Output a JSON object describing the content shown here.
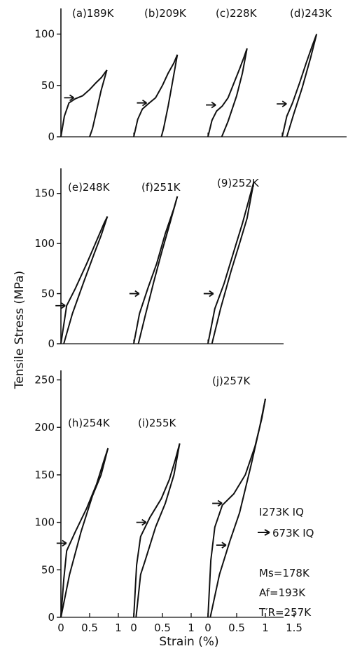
{
  "chart_data": {
    "type": "line",
    "ylabel": "Tensile Stress (MPa)",
    "xlabel": "Strain (%)",
    "rows": [
      {
        "ylim": [
          0,
          125
        ],
        "yticks": [
          "0",
          "50",
          "100"
        ],
        "yticks_values": [
          0,
          50,
          100
        ],
        "panels": [
          {
            "label": "(a)189K",
            "loading": [
              [
                0,
                0
              ],
              [
                0.06,
                20
              ],
              [
                0.14,
                33
              ],
              [
                0.25,
                37
              ],
              [
                0.38,
                40
              ],
              [
                0.5,
                46
              ],
              [
                0.6,
                52
              ],
              [
                0.71,
                58
              ],
              [
                0.8,
                65
              ]
            ],
            "unloading": [
              [
                0.8,
                65
              ],
              [
                0.7,
                45
              ],
              [
                0.62,
                25
              ],
              [
                0.55,
                8
              ],
              [
                0.5,
                0
              ]
            ],
            "arrow": [
              0.25,
              38
            ]
          },
          {
            "label": "(b)209K",
            "loading": [
              [
                0,
                0
              ],
              [
                0.07,
                17
              ],
              [
                0.15,
                27
              ],
              [
                0.25,
                32
              ],
              [
                0.38,
                38
              ],
              [
                0.5,
                50
              ],
              [
                0.6,
                62
              ],
              [
                0.7,
                72
              ],
              [
                0.76,
                80
              ]
            ],
            "unloading": [
              [
                0.76,
                80
              ],
              [
                0.68,
                55
              ],
              [
                0.6,
                30
              ],
              [
                0.52,
                8
              ],
              [
                0.48,
                0
              ]
            ],
            "arrow": [
              0.25,
              33
            ]
          },
          {
            "label": "(c)228K",
            "loading": [
              [
                0,
                0
              ],
              [
                0.07,
                16
              ],
              [
                0.15,
                25
              ],
              [
                0.25,
                30
              ],
              [
                0.35,
                38
              ],
              [
                0.45,
                52
              ],
              [
                0.55,
                66
              ],
              [
                0.63,
                78
              ],
              [
                0.68,
                86
              ]
            ],
            "unloading": [
              [
                0.68,
                86
              ],
              [
                0.6,
                62
              ],
              [
                0.5,
                40
              ],
              [
                0.35,
                15
              ],
              [
                0.24,
                0
              ]
            ],
            "arrow": [
              0.16,
              31
            ]
          },
          {
            "label": "(d)243K",
            "loading": [
              [
                0,
                0
              ],
              [
                0.08,
                20
              ],
              [
                0.18,
                33
              ],
              [
                0.3,
                52
              ],
              [
                0.42,
                72
              ],
              [
                0.52,
                88
              ],
              [
                0.6,
                100
              ]
            ],
            "unloading": [
              [
                0.6,
                100
              ],
              [
                0.5,
                78
              ],
              [
                0.35,
                48
              ],
              [
                0.2,
                22
              ],
              [
                0.08,
                0
              ]
            ],
            "arrow": [
              0.1,
              32
            ]
          }
        ]
      },
      {
        "ylim": [
          0,
          175
        ],
        "yticks": [
          "0",
          "50",
          "100",
          "150"
        ],
        "yticks_values": [
          0,
          50,
          100,
          150
        ],
        "panels": [
          {
            "label": "(e)248K",
            "loading": [
              [
                0,
                0
              ],
              [
                0.1,
                38
              ],
              [
                0.25,
                55
              ],
              [
                0.45,
                80
              ],
              [
                0.6,
                100
              ],
              [
                0.75,
                120
              ],
              [
                0.81,
                127
              ]
            ],
            "unloading": [
              [
                0.81,
                127
              ],
              [
                0.7,
                108
              ],
              [
                0.58,
                90
              ],
              [
                0.4,
                62
              ],
              [
                0.2,
                30
              ],
              [
                0.05,
                0
              ]
            ],
            "arrow": [
              0.1,
              38
            ]
          },
          {
            "label": "(f)251K",
            "loading": [
              [
                0,
                0
              ],
              [
                0.1,
                30
              ],
              [
                0.25,
                56
              ],
              [
                0.4,
                80
              ],
              [
                0.55,
                110
              ],
              [
                0.7,
                135
              ],
              [
                0.76,
                147
              ]
            ],
            "unloading": [
              [
                0.76,
                147
              ],
              [
                0.62,
                118
              ],
              [
                0.48,
                90
              ],
              [
                0.35,
                62
              ],
              [
                0.2,
                28
              ],
              [
                0.08,
                0
              ]
            ],
            "arrow": [
              0.12,
              50
            ]
          },
          {
            "label": "(9)252K",
            "loading": [
              [
                0,
                0
              ],
              [
                0.12,
                35
              ],
              [
                0.28,
                60
              ],
              [
                0.45,
                92
              ],
              [
                0.6,
                120
              ],
              [
                0.72,
                145
              ],
              [
                0.8,
                162
              ]
            ],
            "unloading": [
              [
                0.8,
                162
              ],
              [
                0.68,
                125
              ],
              [
                0.55,
                100
              ],
              [
                0.4,
                72
              ],
              [
                0.22,
                35
              ],
              [
                0.07,
                0
              ]
            ],
            "arrow": [
              0.12,
              50
            ]
          }
        ]
      },
      {
        "ylim": [
          0,
          260
        ],
        "yticks": [
          "0",
          "50",
          "100",
          "150",
          "200",
          "250"
        ],
        "yticks_values": [
          0,
          50,
          100,
          150,
          200,
          250
        ],
        "panels": [
          {
            "label": "(h)254K",
            "loading": [
              [
                0,
                0
              ],
              [
                0.05,
                40
              ],
              [
                0.1,
                70
              ],
              [
                0.25,
                90
              ],
              [
                0.45,
                115
              ],
              [
                0.62,
                140
              ],
              [
                0.75,
                165
              ],
              [
                0.82,
                178
              ]
            ],
            "unloading": [
              [
                0.82,
                178
              ],
              [
                0.7,
                150
              ],
              [
                0.55,
                128
              ],
              [
                0.35,
                90
              ],
              [
                0.15,
                45
              ],
              [
                0,
                0
              ]
            ],
            "arrow": [
              0.12,
              78
            ]
          },
          {
            "label": "(i)255K",
            "loading": [
              [
                0,
                0
              ],
              [
                0.05,
                55
              ],
              [
                0.12,
                85
              ],
              [
                0.28,
                105
              ],
              [
                0.48,
                125
              ],
              [
                0.62,
                145
              ],
              [
                0.72,
                165
              ],
              [
                0.8,
                183
              ]
            ],
            "unloading": [
              [
                0.8,
                183
              ],
              [
                0.7,
                150
              ],
              [
                0.55,
                120
              ],
              [
                0.38,
                95
              ],
              [
                0.2,
                60
              ],
              [
                0.12,
                45
              ],
              [
                0.04,
                0
              ]
            ],
            "arrow": [
              0.24,
              100
            ]
          },
          {
            "label": "(j)257K",
            "loading": [
              [
                0,
                0
              ],
              [
                0.05,
                60
              ],
              [
                0.12,
                95
              ],
              [
                0.25,
                118
              ],
              [
                0.45,
                130
              ],
              [
                0.65,
                150
              ],
              [
                0.82,
                180
              ],
              [
                0.94,
                210
              ],
              [
                1.0,
                230
              ]
            ],
            "unloading": [
              [
                1.0,
                230
              ],
              [
                0.9,
                200
              ],
              [
                0.75,
                160
              ],
              [
                0.55,
                110
              ],
              [
                0.38,
                80
              ],
              [
                0.2,
                45
              ],
              [
                0.04,
                0
              ]
            ],
            "arrow": [
              0.27,
              120
            ],
            "arrow2": [
              0.34,
              76
            ]
          }
        ]
      }
    ],
    "xticks": [
      "0",
      "0.5",
      "1",
      "1.5"
    ],
    "xticks_values": [
      0,
      0.5,
      1,
      1.5
    ]
  },
  "annotations": {
    "line1": "I273K IQ",
    "line2": "673K IQ",
    "ms": "Ms=178K",
    "af": "Af=193K",
    "tr": "T′R=257K"
  }
}
